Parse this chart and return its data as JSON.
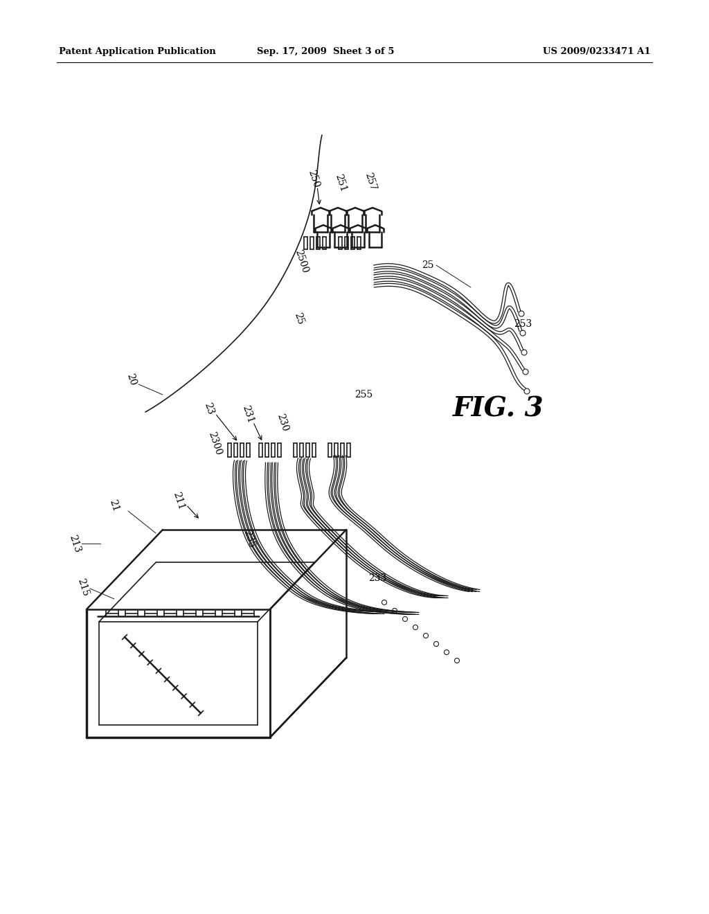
{
  "background_color": "#ffffff",
  "header_left": "Patent Application Publication",
  "header_center": "Sep. 17, 2009  Sheet 3 of 5",
  "header_right": "US 2009/0233471 A1",
  "fig_label": "FIG. 3"
}
